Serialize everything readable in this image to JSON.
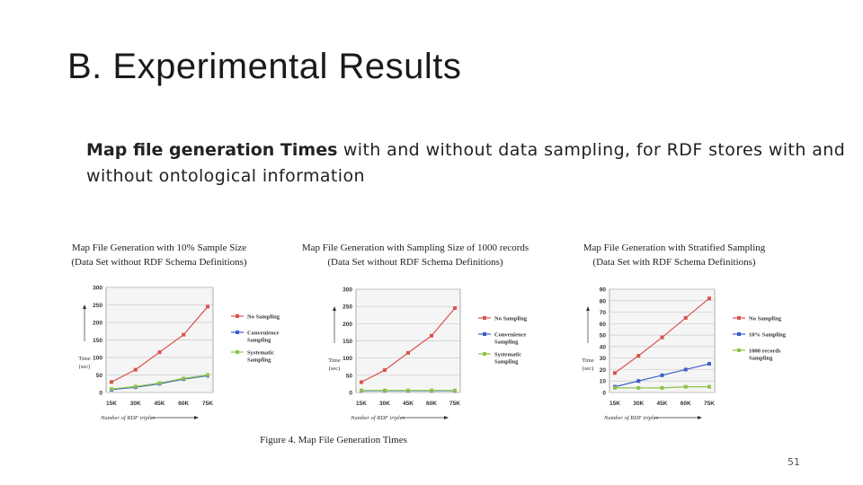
{
  "slide": {
    "title": "B. Experimental Results",
    "subtitle_bold": "Map file generation Times",
    "subtitle_rest": " with and without data sampling, for RDF stores with and without ontological information",
    "caption": "Figure 4. Map File Generation Times",
    "page_number": "51"
  },
  "colors": {
    "red": "#d9534f",
    "blue": "#3a5fc8",
    "green": "#8fc34a",
    "grid": "#c9c9c9",
    "plotbg": "#f5f5f5"
  },
  "chart_data": [
    {
      "type": "line",
      "title": "Map File Generation with 10% Sample Size",
      "subtitle": "(Data Set without RDF Schema Definitions)",
      "xlabel": "Number of RDF triples",
      "ylabel": "Time (sec)",
      "categories": [
        "15K",
        "30K",
        "45K",
        "60K",
        "75K"
      ],
      "ylim": [
        0,
        300
      ],
      "yticks": [
        0,
        50,
        100,
        150,
        200,
        250,
        300
      ],
      "grid": true,
      "legend": "right",
      "series": [
        {
          "name": "No Sampling",
          "color": "#d9534f",
          "values": [
            30,
            65,
            115,
            165,
            245
          ]
        },
        {
          "name": "Convenience Sampling",
          "color": "#3a5fc8",
          "values": [
            8,
            15,
            25,
            38,
            48
          ]
        },
        {
          "name": "Systematic Sampling",
          "color": "#8fc34a",
          "values": [
            10,
            17,
            27,
            40,
            50
          ]
        }
      ]
    },
    {
      "type": "line",
      "title": "Map File Generation with Sampling Size of 1000 records",
      "subtitle": "(Data Set without RDF Schema Definitions)",
      "xlabel": "Number of RDF triples",
      "ylabel": "Time (sec)",
      "categories": [
        "15K",
        "30K",
        "45K",
        "60K",
        "75K"
      ],
      "ylim": [
        0,
        300
      ],
      "yticks": [
        0,
        50,
        100,
        150,
        200,
        250,
        300
      ],
      "grid": true,
      "legend": "right",
      "series": [
        {
          "name": "No Sampling",
          "color": "#d9534f",
          "values": [
            30,
            65,
            115,
            165,
            245
          ]
        },
        {
          "name": "Convenience Sampling",
          "color": "#3a5fc8",
          "values": [
            5,
            5,
            5,
            5,
            5
          ]
        },
        {
          "name": "Systematic Sampling",
          "color": "#8fc34a",
          "values": [
            6,
            6,
            6,
            6,
            6
          ]
        }
      ]
    },
    {
      "type": "line",
      "title": "Map File Generation with Stratified Sampling",
      "subtitle": "(Data Set with RDF Schema Definitions)",
      "xlabel": "Number of RDF triples",
      "ylabel": "Time (sec)",
      "categories": [
        "15K",
        "30K",
        "45K",
        "60K",
        "75K"
      ],
      "ylim": [
        0,
        90
      ],
      "yticks": [
        0,
        10,
        20,
        30,
        40,
        50,
        60,
        70,
        80,
        90
      ],
      "grid": true,
      "legend": "right",
      "series": [
        {
          "name": "No Sampling",
          "color": "#d9534f",
          "values": [
            17,
            32,
            48,
            65,
            82
          ]
        },
        {
          "name": "10% Sampling",
          "color": "#3a5fc8",
          "values": [
            5,
            10,
            15,
            20,
            25
          ]
        },
        {
          "name": "1000 records Sampling",
          "color": "#8fc34a",
          "values": [
            4,
            4,
            4,
            5,
            5
          ]
        }
      ]
    }
  ]
}
